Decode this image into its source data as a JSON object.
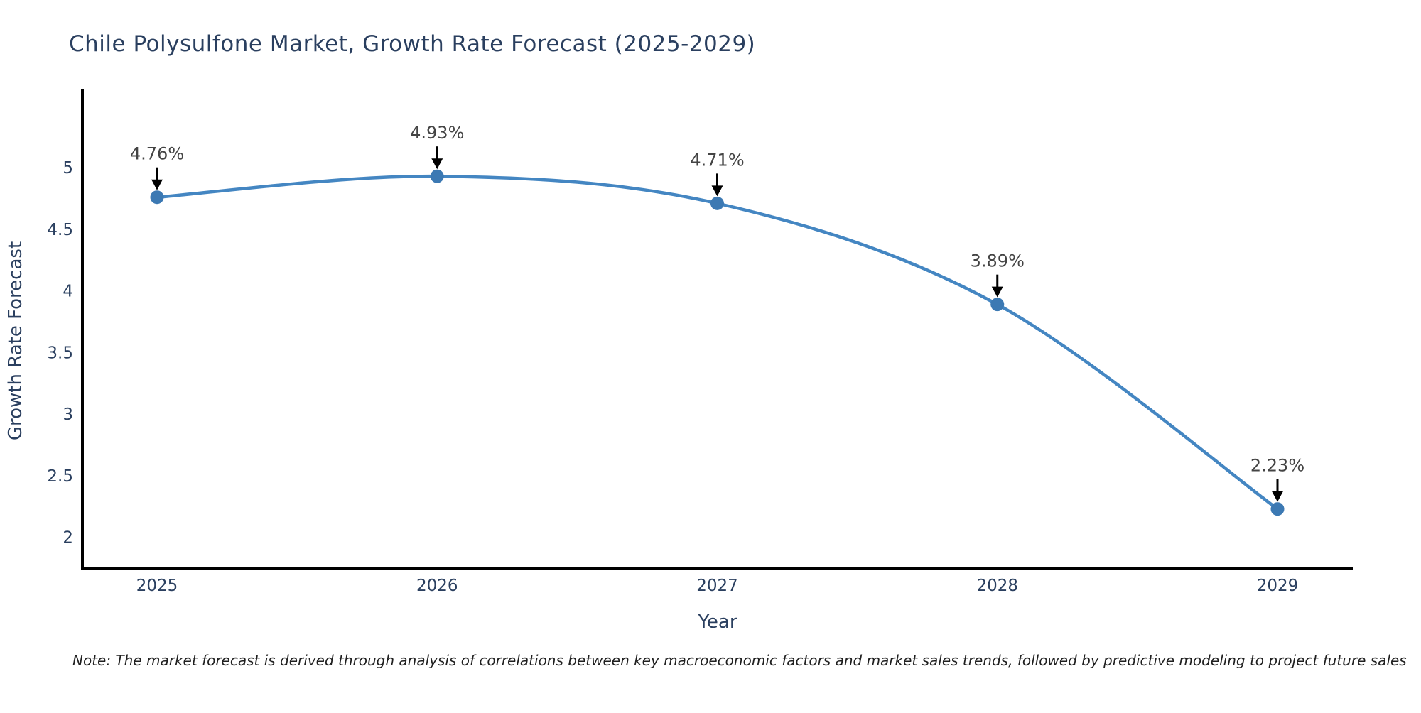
{
  "title": "Chile Polysulfone Market, Growth Rate Forecast (2025-2029)",
  "footnote": "Note: The market forecast is derived through analysis of correlations between key macroeconomic factors and market sales trends, followed by predictive modeling to project future sales",
  "chart_data": {
    "type": "line",
    "x": [
      "2025",
      "2026",
      "2027",
      "2028",
      "2029"
    ],
    "values": [
      4.76,
      4.93,
      4.71,
      3.89,
      2.23
    ],
    "point_labels": [
      "4.76%",
      "4.93%",
      "4.71%",
      "3.89%",
      "2.23%"
    ],
    "xlabel": "Year",
    "ylabel": "Growth Rate Forecast",
    "yticks": [
      2,
      2.5,
      3,
      3.5,
      4,
      4.5,
      5
    ],
    "ylim": [
      1.75,
      5.64
    ],
    "grid": false,
    "legend_position": "none",
    "line_color": "#4486c2",
    "marker_color": "#3c79b3",
    "axis_color": "#000000",
    "arrow_color": "#000000",
    "annotation_text_color": "#444444",
    "title_color": "#2a3f5f",
    "tick_color": "#2a3f5f"
  }
}
